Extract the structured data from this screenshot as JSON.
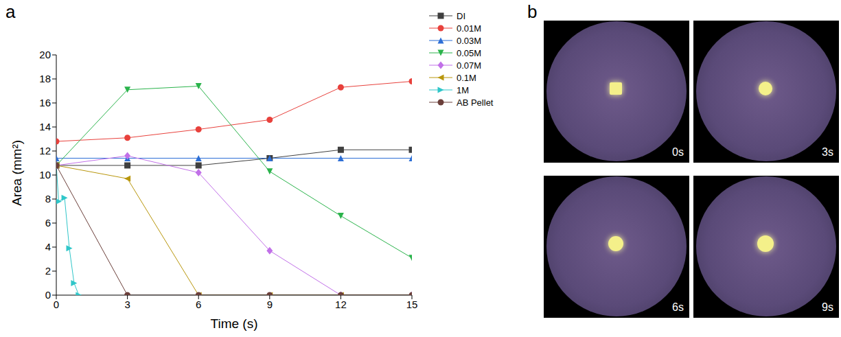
{
  "chart_data": {
    "type": "line",
    "panel": "a",
    "x_label": "Time (s)",
    "y_label": "Area (mm²)",
    "x": [
      0,
      3,
      6,
      9,
      12,
      15
    ],
    "xlim": [
      0,
      15
    ],
    "xticks": [
      0,
      3,
      6,
      9,
      12,
      15
    ],
    "ylim": [
      0,
      20
    ],
    "yticks": [
      0,
      2,
      4,
      6,
      8,
      10,
      12,
      14,
      16,
      18,
      20
    ],
    "grid": false,
    "legend": "right",
    "series": [
      {
        "name": "DI",
        "color": "#3f3f3f",
        "marker": "square",
        "values": [
          10.8,
          10.8,
          10.8,
          11.4,
          12.1,
          12.1
        ]
      },
      {
        "name": "0.01M",
        "color": "#e8413c",
        "marker": "circle",
        "values": [
          12.8,
          13.1,
          13.8,
          14.6,
          17.3,
          17.8
        ]
      },
      {
        "name": "0.03M",
        "color": "#2d6fd6",
        "marker": "triangle-up",
        "values": [
          11.4,
          11.4,
          11.4,
          11.4,
          11.4,
          11.4
        ]
      },
      {
        "name": "0.05M",
        "color": "#2ab34b",
        "marker": "triangle-down",
        "values": [
          10.8,
          17.1,
          17.4,
          10.3,
          6.6,
          3.1
        ]
      },
      {
        "name": "0.07M",
        "color": "#c170e8",
        "marker": "diamond",
        "values": [
          10.8,
          11.6,
          10.2,
          3.7,
          0,
          0
        ]
      },
      {
        "name": "0.1M",
        "color": "#b8960c",
        "marker": "triangle-left",
        "values": [
          10.8,
          9.7,
          0,
          0,
          0,
          0
        ]
      },
      {
        "name": "1M",
        "color": "#2fc6c9",
        "marker": "triangle-right",
        "x": [
          0,
          0.1,
          0.35,
          0.55,
          0.75,
          0.95
        ],
        "values": [
          10.8,
          7.8,
          8.1,
          3.9,
          1.0,
          0
        ]
      },
      {
        "name": "AB Pellet",
        "color": "#6b3f3a",
        "marker": "circle",
        "values": [
          10.8,
          0,
          0,
          0,
          0,
          0
        ]
      }
    ]
  },
  "photo_panel": {
    "panel": "b",
    "frames": [
      "0s",
      "3s",
      "6s",
      "9s"
    ]
  }
}
